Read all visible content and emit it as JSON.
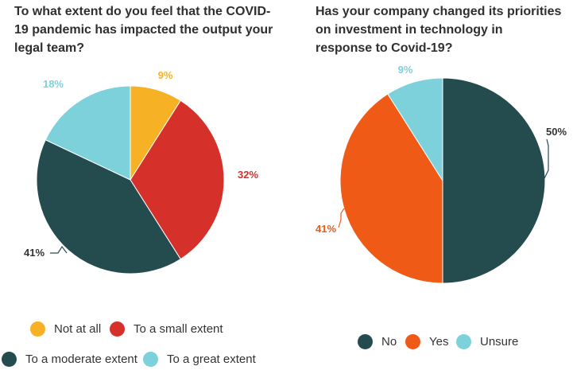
{
  "chart_data": [
    {
      "type": "pie",
      "title": "To what extent do you feel that the COVID-19 pandemic has impacted the output your legal team?",
      "slices": [
        {
          "label": "Not at all",
          "value": 9,
          "display": "9%",
          "color": "#f7b125"
        },
        {
          "label": "To a small extent",
          "value": 32,
          "display": "32%",
          "color": "#d6302b"
        },
        {
          "label": "To a moderate extent",
          "value": 41,
          "display": "41%",
          "color": "#244c4f"
        },
        {
          "label": "To a great extent",
          "value": 18,
          "display": "18%",
          "color": "#7dd1db"
        }
      ],
      "legend_position": "bottom"
    },
    {
      "type": "pie",
      "title": "Has your company changed its priorities on investment in technology in response to Covid-19?",
      "slices": [
        {
          "label": "No",
          "value": 50,
          "display": "50%",
          "color": "#244c4f"
        },
        {
          "label": "Yes",
          "value": 41,
          "display": "41%",
          "color": "#f05a17"
        },
        {
          "label": "Unsure",
          "value": 9,
          "display": "9%",
          "color": "#7dd1db"
        }
      ],
      "legend_position": "bottom"
    }
  ]
}
